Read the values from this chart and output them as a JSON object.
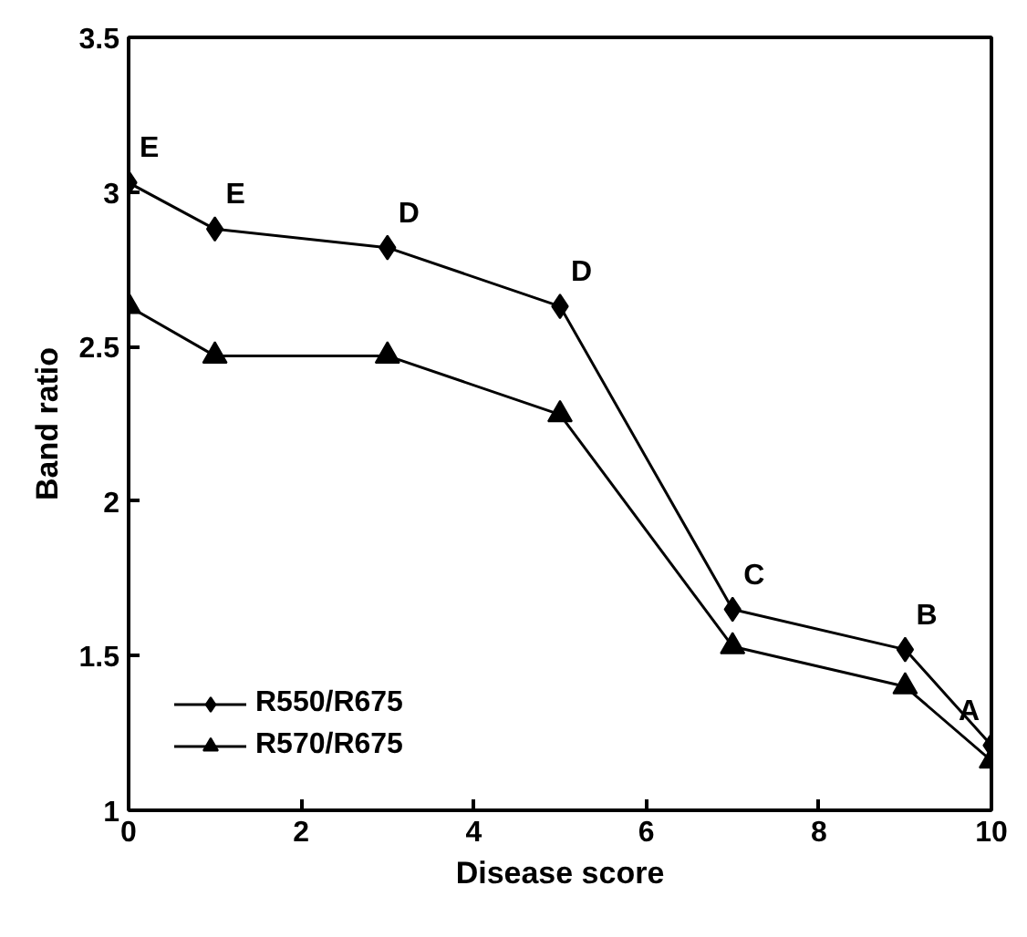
{
  "chart_data": {
    "type": "line",
    "xlabel": "Disease score",
    "ylabel": "Band ratio",
    "x": [
      0,
      1,
      3,
      5,
      7,
      9,
      10
    ],
    "series": [
      {
        "name": "R550/R675",
        "color": "#000000",
        "marker": "diamond",
        "values": [
          3.03,
          2.88,
          2.82,
          2.63,
          1.65,
          1.52,
          1.21
        ]
      },
      {
        "name": "R570/R675",
        "color": "#000000",
        "marker": "triangle",
        "values": [
          2.63,
          2.47,
          2.47,
          2.28,
          1.53,
          1.4,
          1.16
        ]
      }
    ],
    "annotations": [
      {
        "text": "E",
        "x": 0,
        "y": 3.03
      },
      {
        "text": "E",
        "x": 1,
        "y": 2.88
      },
      {
        "text": "D",
        "x": 3,
        "y": 2.82
      },
      {
        "text": "D",
        "x": 5,
        "y": 2.63
      },
      {
        "text": "C",
        "x": 7,
        "y": 1.65
      },
      {
        "text": "B",
        "x": 9,
        "y": 1.52
      },
      {
        "text": "A",
        "x": 10,
        "y": 1.21
      }
    ],
    "xlim": [
      0,
      10
    ],
    "ylim": [
      1,
      3.5
    ],
    "xticks": [
      0,
      2,
      4,
      6,
      8,
      10
    ],
    "yticks": [
      1,
      1.5,
      2,
      2.5,
      3,
      3.5
    ],
    "grid": false,
    "legend": "bottom left",
    "line_style": "solid"
  }
}
